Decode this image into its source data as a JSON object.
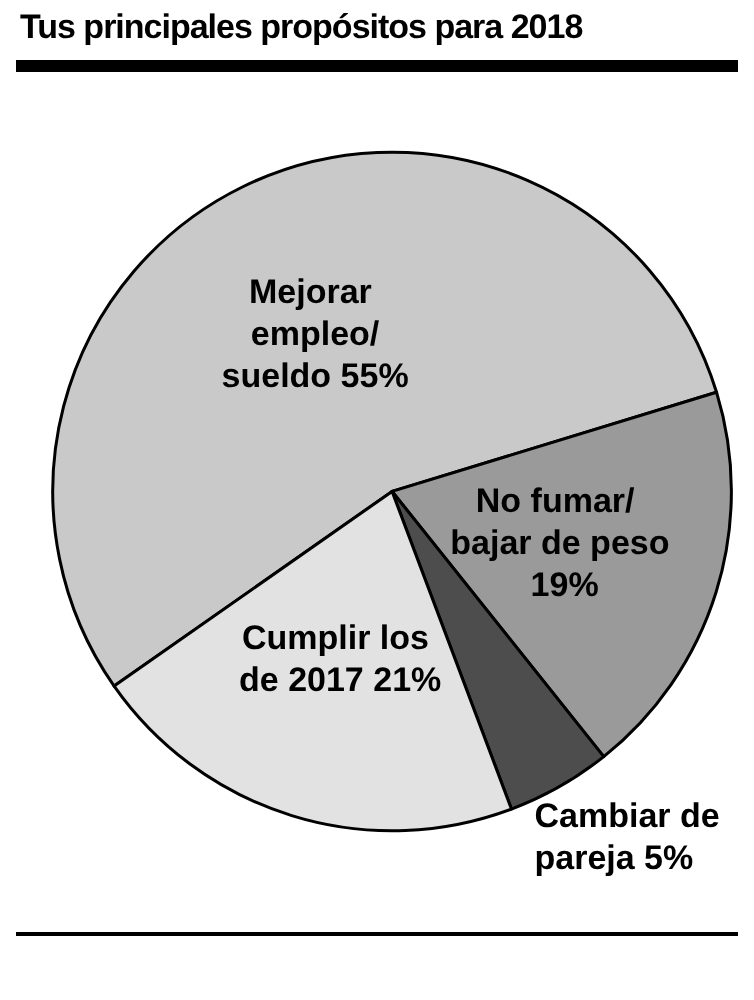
{
  "chart_data": {
    "type": "pie",
    "title": "Tus principales propósitos para 2018",
    "categories": [
      "Mejorar empleo/sueldo",
      "No fumar/ bajar de peso",
      "Cambiar de pareja",
      "Cumplir los de 2017"
    ],
    "values": [
      55,
      19,
      5,
      21
    ],
    "value_labels": [
      "55%",
      "19%",
      "5%",
      "21%"
    ],
    "colors": [
      "#c9c9c9",
      "#9a9a9a",
      "#4d4d4d",
      "#e2e2e2"
    ]
  }
}
